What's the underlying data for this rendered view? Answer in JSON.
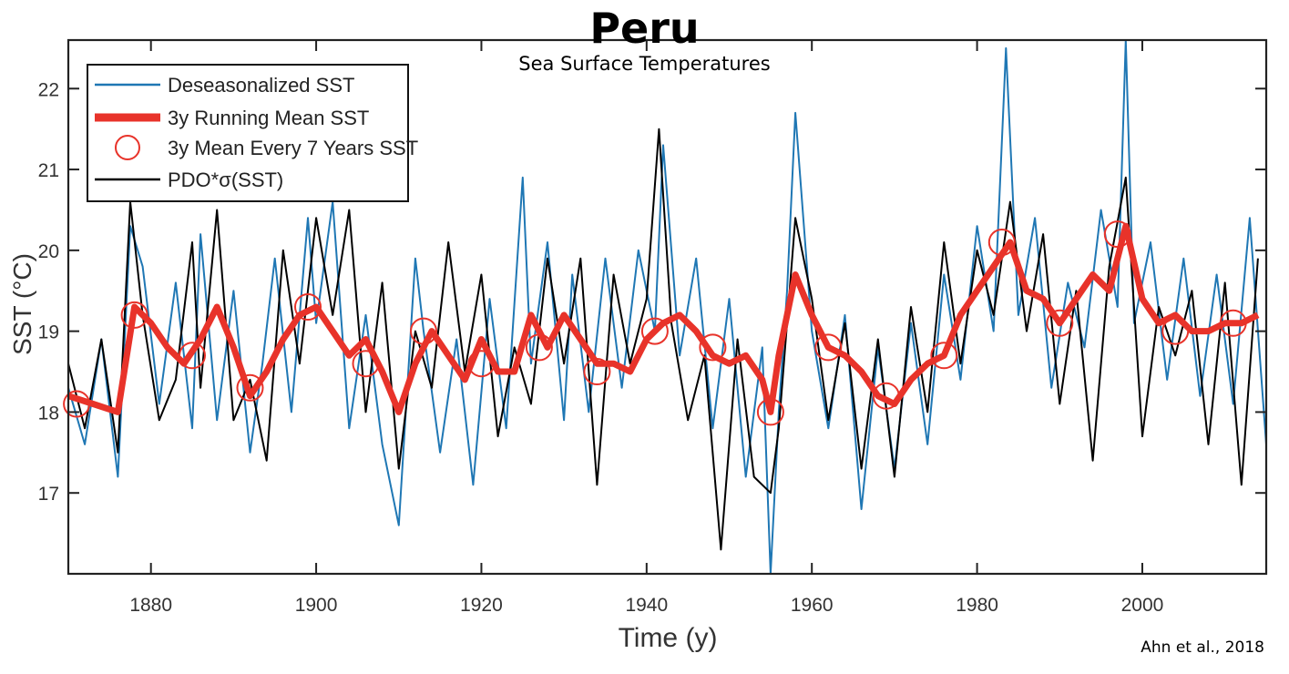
{
  "chart_data": {
    "type": "line",
    "title": "Peru",
    "subtitle": "Sea Surface Temperatures",
    "xlabel": "Time (y)",
    "ylabel": "SST (°C)",
    "xlim": [
      1870,
      2015
    ],
    "ylim": [
      16,
      22.6
    ],
    "x_ticks": [
      1880,
      1900,
      1920,
      1940,
      1960,
      1980,
      2000
    ],
    "y_ticks": [
      17,
      18,
      19,
      20,
      21,
      22
    ],
    "grid": false,
    "legend_position": "top-left",
    "series": [
      {
        "name": "Deseasonalized SST",
        "style": "line",
        "color": "#1f77b4",
        "x": [
          1870,
          1872,
          1874,
          1876,
          1877.5,
          1879,
          1881,
          1883,
          1885,
          1886,
          1888,
          1890,
          1892,
          1893.5,
          1895,
          1897,
          1899,
          1900,
          1902,
          1904,
          1906,
          1908,
          1910,
          1912,
          1913,
          1915,
          1917,
          1919,
          1921,
          1923,
          1925,
          1926,
          1928,
          1930,
          1931,
          1933,
          1935,
          1937,
          1939,
          1941,
          1942,
          1944,
          1946,
          1948,
          1950,
          1952,
          1954,
          1955,
          1956,
          1957,
          1958,
          1960,
          1962,
          1964,
          1966,
          1968,
          1970,
          1972,
          1974,
          1976,
          1978,
          1980,
          1982,
          1983.5,
          1985,
          1987,
          1989,
          1991,
          1993,
          1995,
          1997,
          1998,
          1999,
          2001,
          2003,
          2005,
          2007,
          2009,
          2011,
          2013,
          2015
        ],
        "y": [
          18.3,
          17.6,
          18.9,
          17.2,
          20.3,
          19.8,
          18.1,
          19.6,
          17.8,
          20.2,
          17.9,
          19.5,
          17.5,
          18.6,
          19.9,
          18.0,
          20.4,
          19.1,
          20.6,
          17.8,
          19.2,
          17.6,
          16.6,
          19.9,
          19.0,
          17.5,
          18.9,
          17.1,
          19.4,
          17.8,
          20.9,
          18.6,
          20.1,
          17.9,
          19.7,
          18.0,
          19.9,
          18.3,
          20.0,
          19.0,
          21.3,
          18.7,
          19.9,
          17.8,
          19.4,
          17.2,
          18.8,
          16.0,
          18.0,
          19.5,
          21.7,
          19.0,
          17.8,
          19.2,
          16.8,
          18.8,
          17.3,
          19.1,
          17.6,
          19.7,
          18.4,
          20.3,
          19.0,
          22.5,
          19.2,
          20.4,
          18.3,
          19.6,
          18.8,
          20.5,
          19.3,
          22.6,
          19.1,
          20.1,
          18.4,
          19.9,
          18.2,
          19.7,
          18.1,
          20.4,
          17.6
        ]
      },
      {
        "name": "3y Running Mean SST",
        "style": "line",
        "color": "#e8332a",
        "x": [
          1870,
          1873,
          1876,
          1878,
          1880,
          1882,
          1884,
          1886,
          1888,
          1890,
          1892,
          1894,
          1896,
          1898,
          1900,
          1902,
          1904,
          1906,
          1908,
          1910,
          1912,
          1914,
          1916,
          1918,
          1920,
          1922,
          1924,
          1926,
          1928,
          1930,
          1932,
          1934,
          1936,
          1938,
          1940,
          1942,
          1944,
          1946,
          1948,
          1950,
          1952,
          1954,
          1955,
          1956,
          1958,
          1960,
          1962,
          1964,
          1966,
          1968,
          1970,
          1972,
          1974,
          1976,
          1978,
          1980,
          1982,
          1984,
          1986,
          1988,
          1990,
          1992,
          1994,
          1996,
          1998,
          2000,
          2002,
          2004,
          2006,
          2008,
          2010,
          2012,
          2014
        ],
        "y": [
          18.2,
          18.1,
          18.0,
          19.3,
          19.1,
          18.8,
          18.6,
          18.9,
          19.3,
          18.8,
          18.2,
          18.5,
          18.9,
          19.2,
          19.3,
          19.0,
          18.7,
          18.9,
          18.5,
          18.0,
          18.6,
          19.0,
          18.7,
          18.4,
          18.9,
          18.5,
          18.5,
          19.2,
          18.8,
          19.2,
          18.9,
          18.6,
          18.6,
          18.5,
          18.9,
          19.1,
          19.2,
          19.0,
          18.7,
          18.6,
          18.7,
          18.4,
          18.0,
          18.7,
          19.7,
          19.2,
          18.8,
          18.7,
          18.5,
          18.2,
          18.1,
          18.4,
          18.6,
          18.7,
          19.2,
          19.5,
          19.8,
          20.1,
          19.5,
          19.4,
          19.1,
          19.4,
          19.7,
          19.5,
          20.3,
          19.4,
          19.1,
          19.2,
          19.0,
          19.0,
          19.1,
          19.1,
          19.2
        ]
      },
      {
        "name": "3y Mean Every 7 Years SST",
        "style": "markers",
        "color": "#e8332a",
        "x": [
          1871,
          1878,
          1885,
          1892,
          1899,
          1906,
          1913,
          1920,
          1927,
          1934,
          1941,
          1948,
          1955,
          1962,
          1969,
          1976,
          1983,
          1990,
          1997,
          2004,
          2011
        ],
        "y": [
          18.1,
          19.2,
          18.7,
          18.3,
          19.3,
          18.6,
          19.0,
          18.6,
          18.8,
          18.5,
          19.0,
          18.8,
          18.0,
          18.8,
          18.2,
          18.7,
          20.1,
          19.1,
          20.2,
          19.0,
          19.1
        ]
      },
      {
        "name": "PDO*σ(SST)",
        "style": "line",
        "color": "#000000",
        "x": [
          1870,
          1872,
          1874,
          1876,
          1877.5,
          1879,
          1881,
          1883,
          1885,
          1886,
          1888,
          1890,
          1892,
          1894,
          1896,
          1898,
          1900,
          1902,
          1904,
          1906,
          1908,
          1910,
          1912,
          1914,
          1916,
          1918,
          1920,
          1922,
          1924,
          1926,
          1928,
          1930,
          1932,
          1934,
          1936,
          1938,
          1940,
          1941.5,
          1943,
          1945,
          1947,
          1949,
          1951,
          1953,
          1955,
          1956,
          1958,
          1960,
          1962,
          1964,
          1966,
          1968,
          1970,
          1972,
          1974,
          1976,
          1978,
          1980,
          1982,
          1984,
          1986,
          1988,
          1990,
          1992,
          1994,
          1996,
          1998,
          2000,
          2002,
          2004,
          2006,
          2008,
          2010,
          2012,
          2014
        ],
        "y": [
          18.6,
          17.8,
          18.9,
          17.5,
          20.6,
          19.2,
          17.9,
          18.4,
          20.1,
          18.3,
          20.5,
          17.9,
          18.4,
          17.4,
          20.0,
          18.6,
          20.4,
          19.2,
          20.5,
          18.0,
          19.6,
          17.3,
          19.0,
          18.3,
          20.1,
          18.5,
          19.7,
          17.7,
          18.8,
          18.1,
          19.9,
          18.6,
          19.9,
          17.1,
          19.7,
          18.6,
          19.4,
          21.5,
          19.1,
          17.9,
          18.7,
          16.3,
          18.9,
          17.2,
          17.0,
          17.8,
          20.4,
          19.4,
          17.9,
          19.1,
          17.3,
          18.9,
          17.2,
          19.3,
          18.0,
          20.1,
          18.6,
          20.0,
          19.2,
          20.6,
          19.0,
          20.2,
          18.1,
          19.5,
          17.4,
          19.8,
          20.9,
          17.7,
          19.3,
          18.7,
          19.5,
          17.6,
          19.6,
          17.1,
          19.9
        ]
      }
    ]
  },
  "credit": "Ahn et al., 2018"
}
